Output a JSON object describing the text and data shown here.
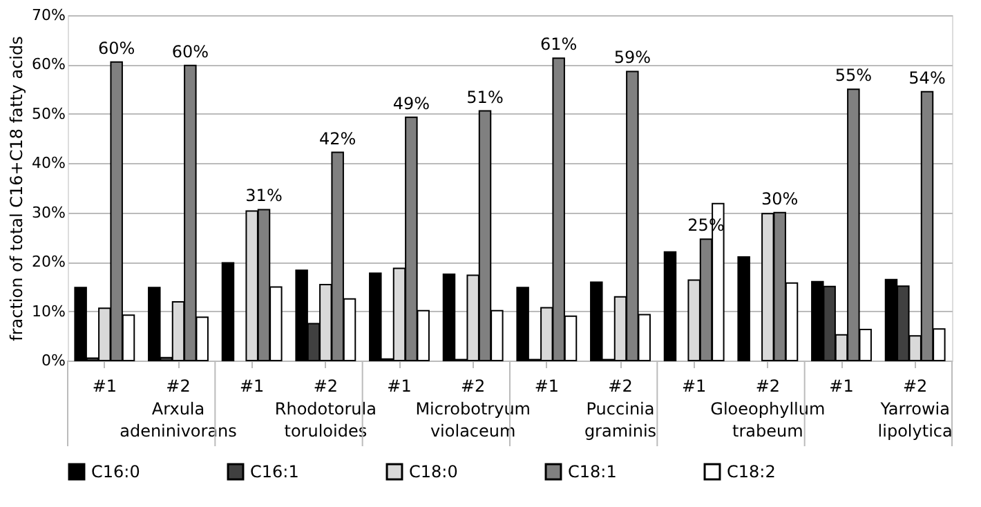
{
  "chart_data": {
    "type": "bar",
    "ylabel": "fraction of total C16+C18 fatty acids",
    "categories": [
      "#1",
      "#2",
      "#1",
      "#2",
      "#1",
      "#2",
      "#1",
      "#2",
      "#1",
      "#2",
      "#1",
      "#2"
    ],
    "annotations": [
      "Arxula adeninivorans",
      "Rhodotorula toruloides",
      "Microbotryum violaceum",
      "Puccinia graminis",
      "Gloeophyllum trabeum",
      "Yarrowia lipolytica"
    ],
    "series": [
      {
        "name": "C16:0",
        "color": "#000000",
        "values": [
          14.8,
          14.8,
          19.8,
          18.3,
          17.7,
          17.5,
          14.8,
          15.9,
          22.0,
          21.0,
          16.0,
          16.4
        ]
      },
      {
        "name": "C16:1",
        "color": "#404040",
        "values": [
          0.5,
          0.6,
          0,
          7.5,
          0.3,
          0.2,
          0.2,
          0.2,
          0,
          0,
          15.0,
          15.1
        ]
      },
      {
        "name": "C18:0",
        "color": "#d9d9d9",
        "values": [
          10.6,
          11.9,
          30.3,
          15.4,
          18.7,
          17.3,
          10.7,
          12.9,
          16.3,
          29.8,
          5.2,
          5.0
        ]
      },
      {
        "name": "C18:1",
        "color": "#808080",
        "values": [
          60.5,
          59.8,
          30.6,
          42.2,
          49.3,
          50.6,
          61.3,
          58.6,
          24.6,
          30.0,
          55.0,
          54.5
        ],
        "value_labels": [
          "60%",
          "60%",
          "31%",
          "42%",
          "49%",
          "51%",
          "61%",
          "59%",
          "25%",
          "30%",
          "55%",
          "54%"
        ]
      },
      {
        "name": "C18:2",
        "color": "#ffffff",
        "values": [
          9.2,
          8.8,
          14.9,
          12.5,
          10.1,
          10.1,
          9.0,
          9.3,
          31.8,
          15.7,
          6.3,
          6.4
        ]
      }
    ],
    "ylim": [
      0,
      70
    ],
    "yticks": [
      {
        "value": 0,
        "label": "0%"
      },
      {
        "value": 10,
        "label": "10%"
      },
      {
        "value": 20,
        "label": "20%"
      },
      {
        "value": 30,
        "label": "30%"
      },
      {
        "value": 40,
        "label": "40%"
      },
      {
        "value": 50,
        "label": "50%"
      },
      {
        "value": 60,
        "label": "60%"
      },
      {
        "value": 70,
        "label": "70%"
      }
    ],
    "grid": "y",
    "legend": "bottom"
  }
}
